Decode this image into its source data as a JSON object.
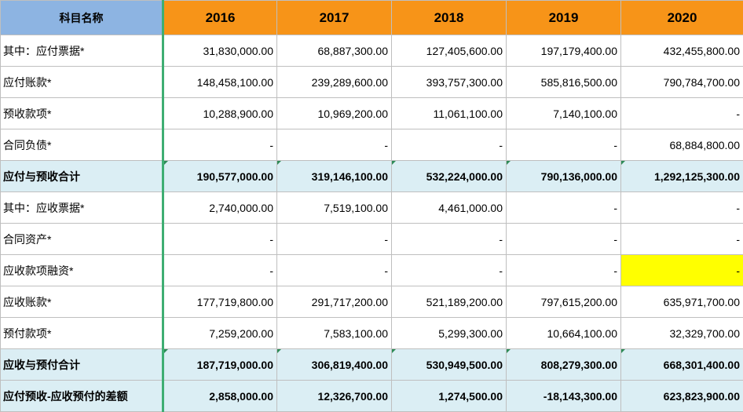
{
  "header": {
    "name_col": "科目名称",
    "years": [
      "2016",
      "2017",
      "2018",
      "2019",
      "2020"
    ]
  },
  "rows": [
    {
      "label": "其中：应付票据*",
      "values": [
        "31,830,000.00",
        "68,887,300.00",
        "127,405,600.00",
        "197,179,400.00",
        "432,455,800.00"
      ],
      "kind": "normal"
    },
    {
      "label": "应付账款*",
      "values": [
        "148,458,100.00",
        "239,289,600.00",
        "393,757,300.00",
        "585,816,500.00",
        "790,784,700.00"
      ],
      "kind": "normal"
    },
    {
      "label": "预收款项*",
      "values": [
        "10,288,900.00",
        "10,969,200.00",
        "11,061,100.00",
        "7,140,100.00",
        "-"
      ],
      "kind": "normal"
    },
    {
      "label": "合同负债*",
      "values": [
        "-",
        "-",
        "-",
        "-",
        "68,884,800.00"
      ],
      "kind": "normal"
    },
    {
      "label": "应付与预收合计",
      "values": [
        "190,577,000.00",
        "319,146,100.00",
        "532,224,000.00",
        "790,136,000.00",
        "1,292,125,300.00"
      ],
      "kind": "total"
    },
    {
      "label": "其中：应收票据*",
      "values": [
        "2,740,000.00",
        "7,519,100.00",
        "4,461,000.00",
        "-",
        "-"
      ],
      "kind": "normal"
    },
    {
      "label": "合同资产*",
      "values": [
        "-",
        "-",
        "-",
        "-",
        "-"
      ],
      "kind": "normal"
    },
    {
      "label": "应收款项融资*",
      "values": [
        "-",
        "-",
        "-",
        "-",
        "-"
      ],
      "kind": "normal",
      "highlight_last": true
    },
    {
      "label": "应收账款*",
      "values": [
        "177,719,800.00",
        "291,717,200.00",
        "521,189,200.00",
        "797,615,200.00",
        "635,971,700.00"
      ],
      "kind": "normal"
    },
    {
      "label": "预付款项*",
      "values": [
        "7,259,200.00",
        "7,583,100.00",
        "5,299,300.00",
        "10,664,100.00",
        "32,329,700.00"
      ],
      "kind": "normal"
    },
    {
      "label": "应收与预付合计",
      "values": [
        "187,719,000.00",
        "306,819,400.00",
        "530,949,500.00",
        "808,279,300.00",
        "668,301,400.00"
      ],
      "kind": "total"
    },
    {
      "label": "应付预收-应收预付的差额",
      "values": [
        "2,858,000.00",
        "12,326,700.00",
        "1,274,500.00",
        "-18,143,300.00",
        "623,823,900.00"
      ],
      "kind": "diff"
    }
  ],
  "colors": {
    "header_name_bg": "#8db4e2",
    "header_year_bg": "#f79418",
    "total_row_bg": "#dbeef4",
    "highlight_cell": "#ffff00",
    "separator": "#3fae73"
  }
}
